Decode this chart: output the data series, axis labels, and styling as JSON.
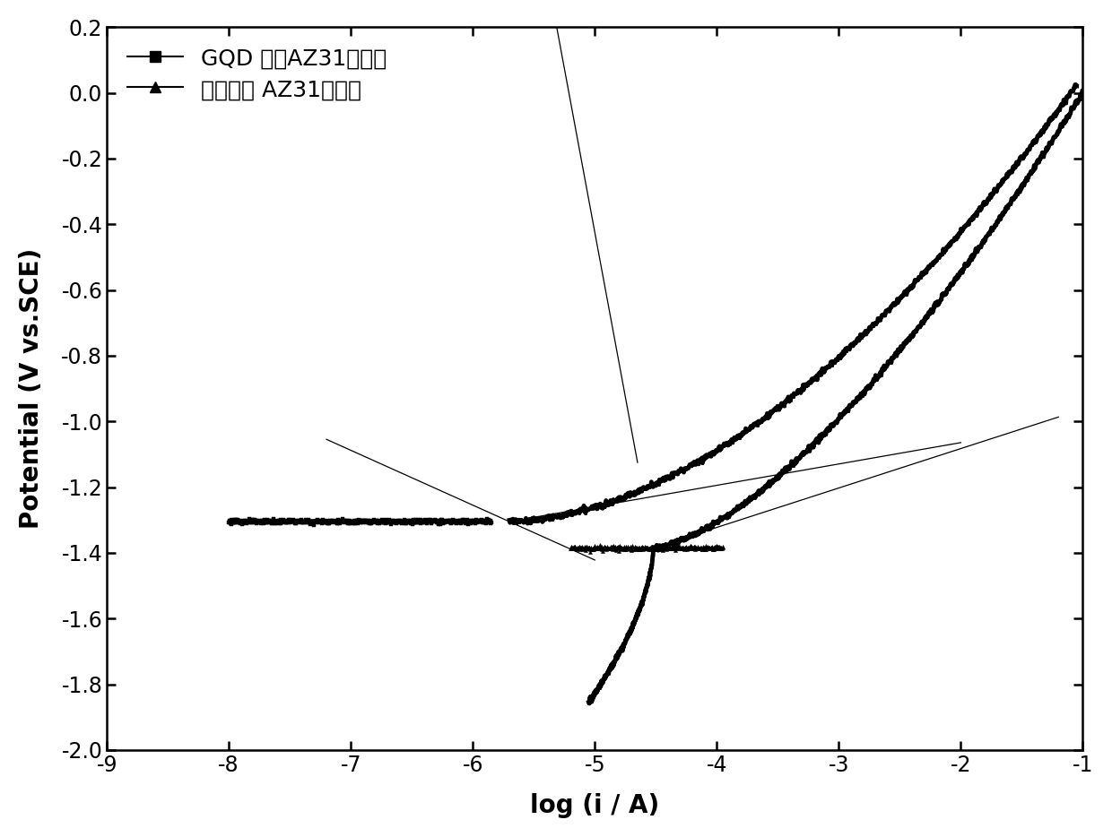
{
  "title": "",
  "xlabel": "log (i / A)",
  "ylabel": "Potential (V vs.SCE)",
  "xlim": [
    -9,
    -1
  ],
  "ylim": [
    -2.0,
    0.2
  ],
  "xticks": [
    -9,
    -8,
    -7,
    -6,
    -5,
    -4,
    -3,
    -2,
    -1
  ],
  "yticks": [
    -2.0,
    -1.8,
    -1.6,
    -1.4,
    -1.2,
    -1.0,
    -0.8,
    -0.6,
    -0.4,
    -0.2,
    0.0,
    0.2
  ],
  "legend1": "GQD 涂层AZ31镁合金",
  "legend2": "没有涂层 AZ31镁合金",
  "background_color": "#ffffff",
  "line_color": "#000000",
  "linewidth": 2.5,
  "font_size_labels": 20,
  "font_size_ticks": 17,
  "font_size_legend": 18,
  "E_corr_GQD": -1.305,
  "log_i_corr_GQD": -5.7,
  "E_corr_bare": -1.385,
  "log_i_corr_bare": -4.52
}
